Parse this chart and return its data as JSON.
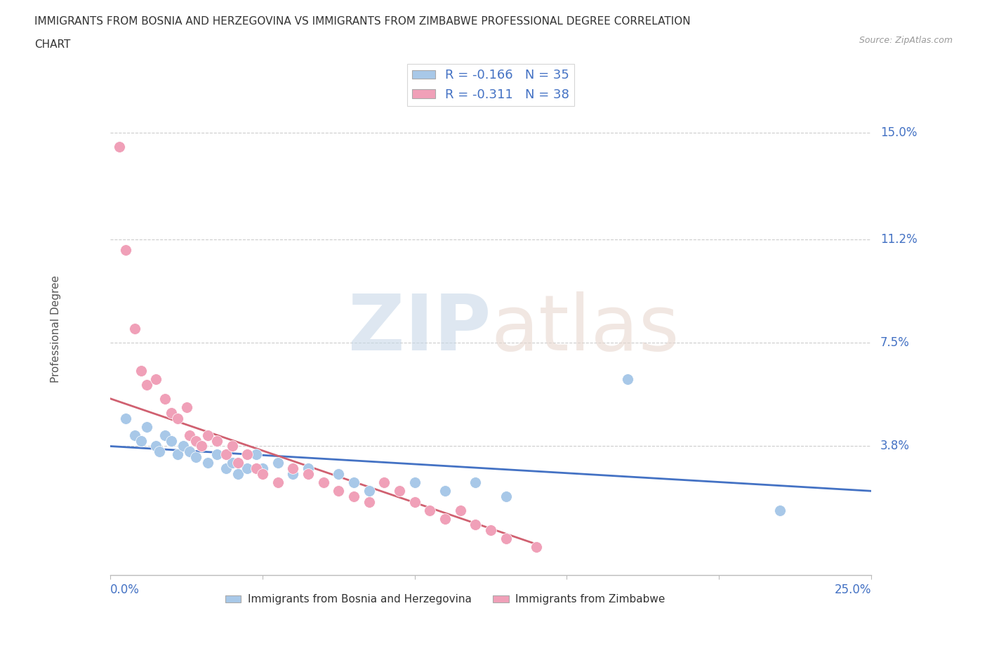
{
  "title_line1": "IMMIGRANTS FROM BOSNIA AND HERZEGOVINA VS IMMIGRANTS FROM ZIMBABWE PROFESSIONAL DEGREE CORRELATION",
  "title_line2": "CHART",
  "source": "Source: ZipAtlas.com",
  "ylabel": "Professional Degree",
  "ylabel_right_ticks": [
    "15.0%",
    "11.2%",
    "7.5%",
    "3.8%"
  ],
  "ylabel_right_values": [
    0.15,
    0.112,
    0.075,
    0.038
  ],
  "xlim": [
    0.0,
    0.25
  ],
  "ylim": [
    -0.008,
    0.168
  ],
  "color_bosnia": "#a8c8e8",
  "color_zimbabwe": "#f0a0b8",
  "color_text": "#4472c4",
  "bosnia_x": [
    0.005,
    0.008,
    0.01,
    0.012,
    0.015,
    0.016,
    0.018,
    0.02,
    0.022,
    0.024,
    0.026,
    0.028,
    0.03,
    0.032,
    0.035,
    0.038,
    0.04,
    0.042,
    0.045,
    0.048,
    0.05,
    0.055,
    0.06,
    0.065,
    0.07,
    0.075,
    0.08,
    0.085,
    0.09,
    0.1,
    0.11,
    0.12,
    0.13,
    0.17,
    0.22
  ],
  "bosnia_y": [
    0.048,
    0.042,
    0.04,
    0.045,
    0.038,
    0.036,
    0.042,
    0.04,
    0.035,
    0.038,
    0.036,
    0.034,
    0.038,
    0.032,
    0.035,
    0.03,
    0.032,
    0.028,
    0.03,
    0.035,
    0.03,
    0.032,
    0.028,
    0.03,
    0.025,
    0.028,
    0.025,
    0.022,
    0.025,
    0.025,
    0.022,
    0.025,
    0.02,
    0.062,
    0.015
  ],
  "zimbabwe_x": [
    0.003,
    0.005,
    0.008,
    0.01,
    0.012,
    0.015,
    0.018,
    0.02,
    0.022,
    0.025,
    0.026,
    0.028,
    0.03,
    0.032,
    0.035,
    0.038,
    0.04,
    0.042,
    0.045,
    0.048,
    0.05,
    0.055,
    0.06,
    0.065,
    0.07,
    0.075,
    0.08,
    0.085,
    0.09,
    0.095,
    0.1,
    0.105,
    0.11,
    0.115,
    0.12,
    0.125,
    0.13,
    0.14
  ],
  "zimbabwe_y": [
    0.145,
    0.108,
    0.08,
    0.065,
    0.06,
    0.062,
    0.055,
    0.05,
    0.048,
    0.052,
    0.042,
    0.04,
    0.038,
    0.042,
    0.04,
    0.035,
    0.038,
    0.032,
    0.035,
    0.03,
    0.028,
    0.025,
    0.03,
    0.028,
    0.025,
    0.022,
    0.02,
    0.018,
    0.025,
    0.022,
    0.018,
    0.015,
    0.012,
    0.015,
    0.01,
    0.008,
    0.005,
    0.002
  ],
  "bosnia_trend_x": [
    0.0,
    0.25
  ],
  "bosnia_trend_y": [
    0.038,
    0.022
  ],
  "zimbabwe_trend_x": [
    0.0,
    0.14
  ],
  "zimbabwe_trend_y": [
    0.055,
    0.003
  ]
}
